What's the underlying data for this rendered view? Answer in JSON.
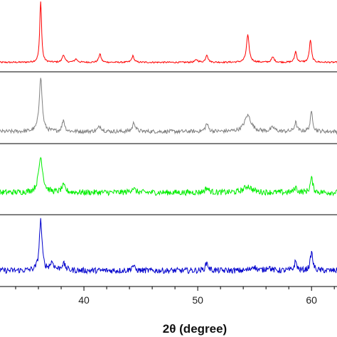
{
  "chart_data": {
    "type": "line",
    "xlabel": "2θ (degree)",
    "xlim": [
      32.5,
      62.3
    ],
    "xticks": [
      40,
      50,
      60
    ],
    "x_start": 32.5,
    "x_step": 0.05,
    "grid": false,
    "series": [
      {
        "color": "#ff0000",
        "baseline": 0.08,
        "noise": 0.012,
        "peaks": [
          [
            36.2,
            1.0,
            0.09
          ],
          [
            38.2,
            0.12,
            0.12
          ],
          [
            39.3,
            0.05,
            0.15
          ],
          [
            41.4,
            0.13,
            0.12
          ],
          [
            44.3,
            0.1,
            0.12
          ],
          [
            49.9,
            0.04,
            0.15
          ],
          [
            50.8,
            0.12,
            0.12
          ],
          [
            54.4,
            0.42,
            0.14
          ],
          [
            56.6,
            0.08,
            0.14
          ],
          [
            58.6,
            0.17,
            0.11
          ],
          [
            59.9,
            0.35,
            0.11
          ]
        ]
      },
      {
        "color": "#808080",
        "baseline": 0.12,
        "noise": 0.03,
        "peaks": [
          [
            36.2,
            0.85,
            0.15
          ],
          [
            38.2,
            0.18,
            0.13
          ],
          [
            41.4,
            0.08,
            0.2
          ],
          [
            44.4,
            0.14,
            0.15
          ],
          [
            50.8,
            0.12,
            0.15
          ],
          [
            54.4,
            0.25,
            0.35
          ],
          [
            56.6,
            0.06,
            0.2
          ],
          [
            58.6,
            0.14,
            0.13
          ],
          [
            60.0,
            0.3,
            0.13
          ]
        ]
      },
      {
        "color": "#00ee00",
        "baseline": 0.28,
        "noise": 0.045,
        "peaks": [
          [
            36.2,
            0.55,
            0.22
          ],
          [
            38.2,
            0.1,
            0.2
          ],
          [
            44.3,
            0.07,
            0.2
          ],
          [
            50.8,
            0.07,
            0.2
          ],
          [
            54.4,
            0.1,
            0.4
          ],
          [
            58.6,
            0.08,
            0.15
          ],
          [
            60.0,
            0.22,
            0.14
          ]
        ]
      },
      {
        "color": "#0000cc",
        "baseline": 0.18,
        "noise": 0.045,
        "peaks": [
          [
            36.2,
            0.78,
            0.14
          ],
          [
            37.2,
            0.12,
            0.2
          ],
          [
            38.2,
            0.1,
            0.2
          ],
          [
            44.3,
            0.08,
            0.15
          ],
          [
            50.8,
            0.12,
            0.15
          ],
          [
            54.9,
            0.07,
            0.2
          ],
          [
            56.2,
            0.06,
            0.2
          ],
          [
            58.6,
            0.14,
            0.13
          ],
          [
            60.0,
            0.28,
            0.13
          ]
        ]
      }
    ]
  }
}
